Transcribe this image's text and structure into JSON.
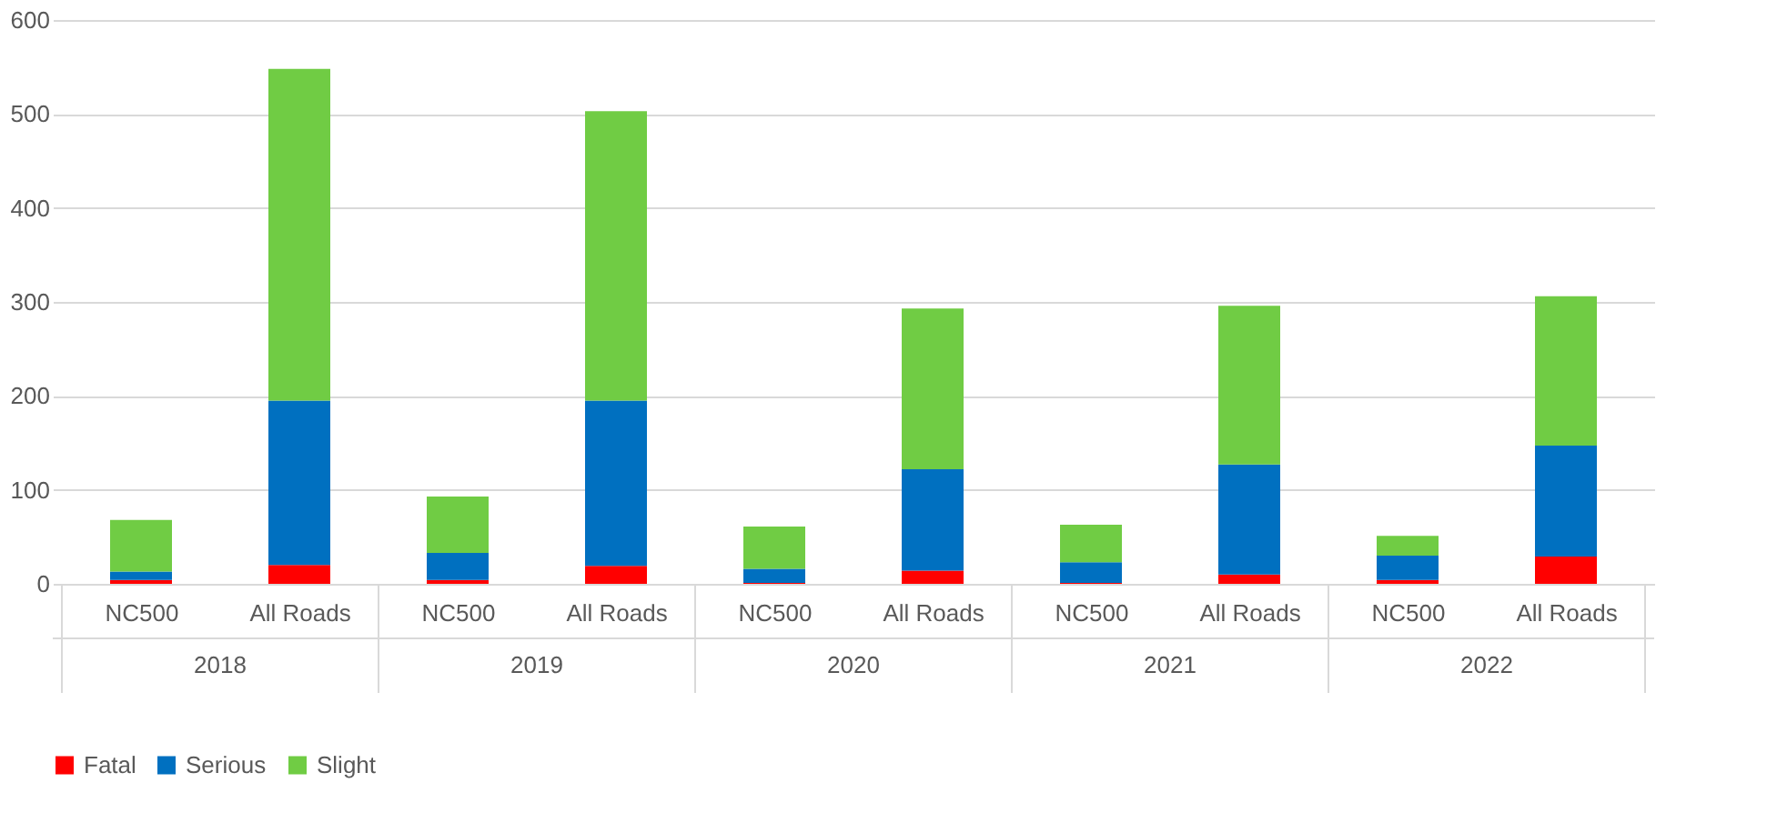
{
  "chart_data": {
    "type": "bar",
    "stacked": true,
    "categories": [
      "NC500",
      "All Roads",
      "NC500",
      "All Roads",
      "NC500",
      "All Roads",
      "NC500",
      "All Roads",
      "NC500",
      "All Roads"
    ],
    "annotations": [
      "2018",
      "2019",
      "2020",
      "2021",
      "2022"
    ],
    "series": [
      {
        "name": "Fatal",
        "color": "#ff0000",
        "values": [
          4,
          20,
          4,
          19,
          1,
          14,
          1,
          10,
          4,
          29
        ]
      },
      {
        "name": "Serious",
        "color": "#0070c0",
        "values": [
          9,
          175,
          29,
          176,
          15,
          108,
          22,
          117,
          26,
          118
        ]
      },
      {
        "name": "Slight",
        "color": "#70cc44",
        "values": [
          55,
          353,
          60,
          308,
          45,
          171,
          40,
          169,
          21,
          159
        ]
      }
    ],
    "ylim": [
      0,
      600
    ],
    "yticks": [
      0,
      100,
      200,
      300,
      400,
      500,
      600
    ],
    "grid": "y",
    "legend": "bottom"
  }
}
